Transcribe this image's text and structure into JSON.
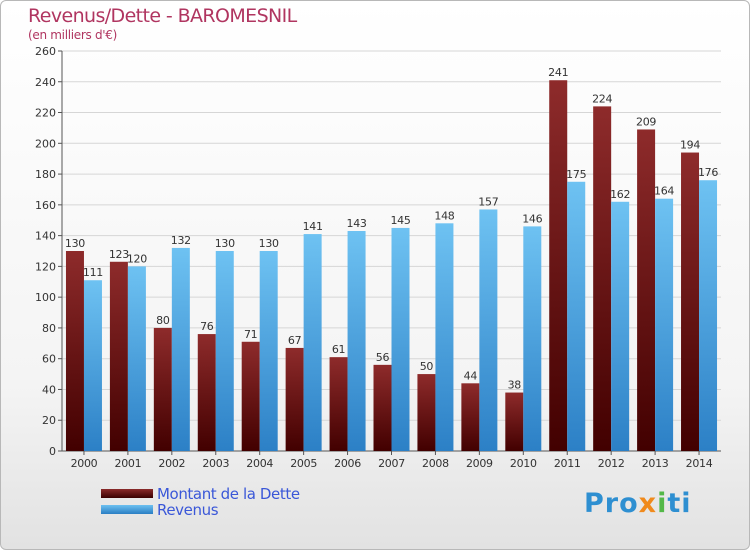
{
  "title": "Revenus/Dette - BAROMESNIL",
  "subtitle": "(en milliers d'€)",
  "legend": {
    "dette": "Montant de la Dette",
    "revenus": "Revenus"
  },
  "brand": {
    "part1": "Pro",
    "part2": "x",
    "part3": "i",
    "part4": "ti"
  },
  "colors": {
    "dette": "#7a1f1f",
    "revenus": "#56aaea",
    "title": "#b03560",
    "legend_text": "#3a57d8"
  },
  "chart_data": {
    "type": "bar",
    "categories": [
      "2000",
      "2001",
      "2002",
      "2003",
      "2004",
      "2005",
      "2006",
      "2007",
      "2008",
      "2009",
      "2010",
      "2011",
      "2012",
      "2013",
      "2014"
    ],
    "series": [
      {
        "name": "Montant de la Dette",
        "values": [
          130,
          123,
          80,
          76,
          71,
          67,
          61,
          56,
          50,
          44,
          38,
          241,
          224,
          209,
          194
        ]
      },
      {
        "name": "Revenus",
        "values": [
          111,
          120,
          132,
          130,
          130,
          141,
          143,
          145,
          148,
          157,
          146,
          175,
          162,
          164,
          176
        ]
      }
    ],
    "ylim": [
      0,
      260
    ],
    "yticks": [
      0,
      20,
      40,
      60,
      80,
      100,
      120,
      140,
      160,
      180,
      200,
      220,
      240,
      260
    ],
    "grid": true,
    "legend_position": "bottom-left"
  }
}
